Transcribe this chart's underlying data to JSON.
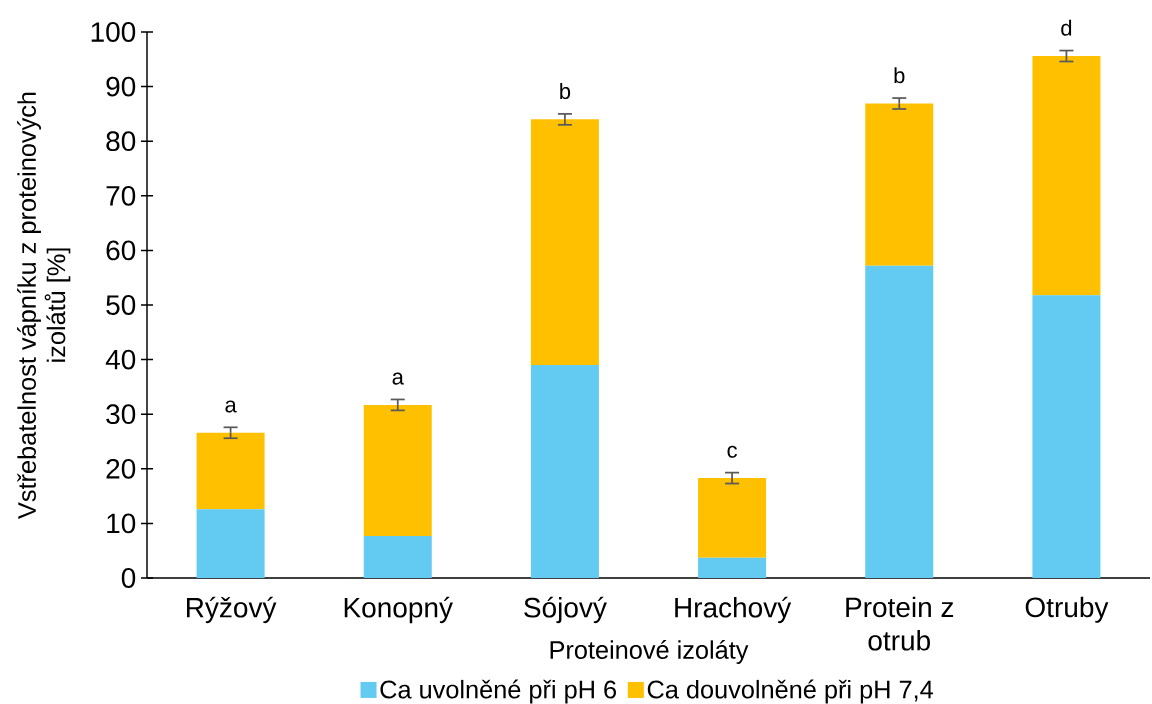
{
  "chart_data": {
    "type": "bar",
    "stacked": true,
    "xlabel": "Proteinové izoláty",
    "ylabel": "Vstřebatelnost vápníku z proteinových izolátů [%]",
    "categories": [
      "Rýžový",
      "Konopný",
      "Sójový",
      "Hrachový",
      "Protein z otrub",
      "Otruby"
    ],
    "series": [
      {
        "name": "Ca uvolněné při pH 6",
        "color": "#63caf2",
        "values": [
          12.6,
          7.7,
          39.0,
          3.7,
          57.2,
          51.8
        ]
      },
      {
        "name": "Ca douvolněné při pH 7,4",
        "color": "#ffc000",
        "values": [
          14.0,
          24.0,
          45.0,
          14.6,
          29.7,
          43.8
        ],
        "errors": [
          1.0,
          1.0,
          1.0,
          1.0,
          1.0,
          1.0
        ]
      }
    ],
    "ylim": [
      0,
      100
    ],
    "yticks": [
      0,
      10,
      20,
      30,
      40,
      50,
      60,
      70,
      80,
      90,
      100
    ],
    "grid": false,
    "legend": "bottom",
    "annotations": [
      "a",
      "a",
      "b",
      "c",
      "b",
      "d"
    ]
  }
}
